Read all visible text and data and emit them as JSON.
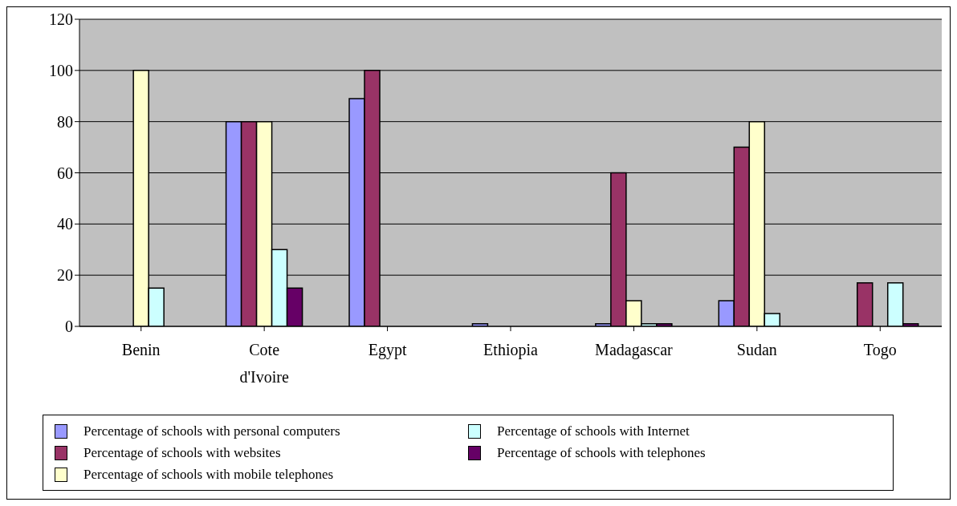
{
  "chart_data": {
    "type": "bar",
    "categories": [
      "Benin",
      "Cote d'Ivoire",
      "Egypt",
      "Ethiopia",
      "Madagascar",
      "Sudan",
      "Togo"
    ],
    "series": [
      {
        "name": "Percentage of schools with personal computers",
        "color": "#9999ff",
        "values": [
          null,
          80,
          89,
          1,
          1,
          10,
          null
        ]
      },
      {
        "name": "Percentage of schools with websites",
        "color": "#993366",
        "values": [
          null,
          80,
          100,
          null,
          60,
          70,
          17
        ]
      },
      {
        "name": "Percentage of schools with mobile telephones",
        "color": "#ffffcc",
        "values": [
          100,
          80,
          null,
          null,
          10,
          80,
          null
        ]
      },
      {
        "name": "Percentage of schools with Internet",
        "color": "#ccffff",
        "values": [
          15,
          30,
          null,
          null,
          1,
          5,
          17
        ]
      },
      {
        "name": "Percentage of schools with telephones",
        "color": "#660066",
        "values": [
          null,
          15,
          null,
          null,
          1,
          null,
          1
        ]
      }
    ],
    "ylim": [
      0,
      120
    ],
    "yticks": [
      0,
      20,
      40,
      60,
      80,
      100,
      120
    ],
    "grid": "y",
    "legend": "bottom"
  }
}
